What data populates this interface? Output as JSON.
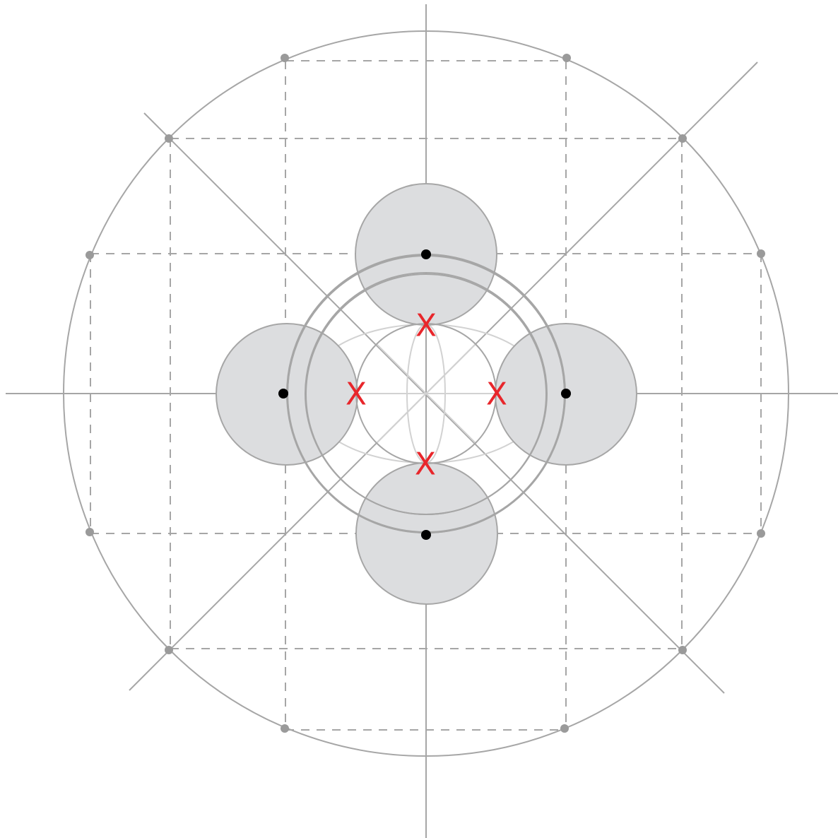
{
  "diagram": {
    "colors": {
      "background": "#ffffff",
      "line": "#a6a6a6",
      "axis": "#9e9e9e",
      "faint": "#d2d2d2",
      "dashed": "#a6a6a6",
      "fill": "#dcdddf",
      "dot": "#000000",
      "perimeter_point": "#9a9a9a",
      "mark": "#e8262b"
    },
    "marks": [
      {
        "id": "top",
        "label": "X"
      },
      {
        "id": "left",
        "label": "X"
      },
      {
        "id": "right",
        "label": "X"
      },
      {
        "id": "bottom",
        "label": "X"
      }
    ]
  }
}
